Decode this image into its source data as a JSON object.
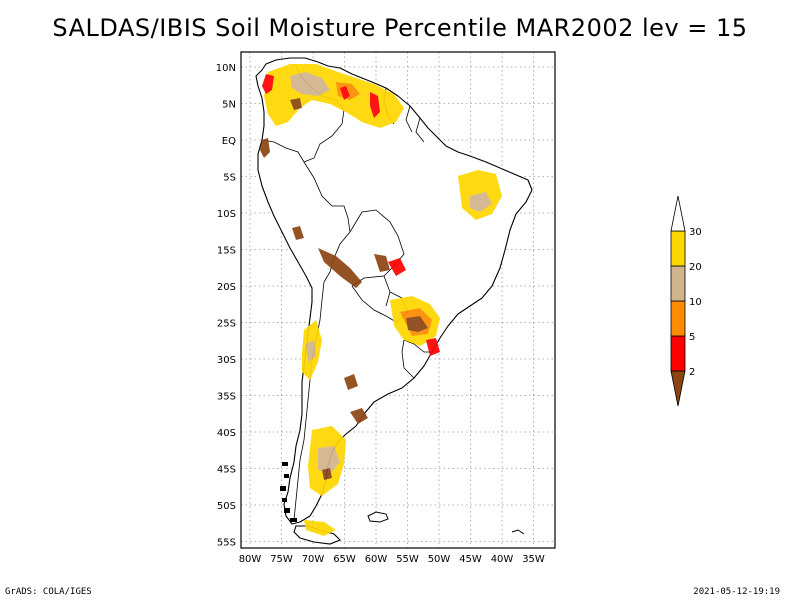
{
  "title": "SALDAS/IBIS Soil Moisture Percentile MAR2002 lev = 15",
  "map": {
    "region": "South America",
    "projection": "latitude-longitude",
    "lon_range": [
      -81,
      -31
    ],
    "lat_range": [
      -56,
      11
    ],
    "grid_lines": "dotted"
  },
  "axes": {
    "y_ticks": [
      {
        "label": "10N",
        "lat": 10
      },
      {
        "label": "5N",
        "lat": 5
      },
      {
        "label": "EQ",
        "lat": 0
      },
      {
        "label": "5S",
        "lat": -5
      },
      {
        "label": "10S",
        "lat": -10
      },
      {
        "label": "15S",
        "lat": -15
      },
      {
        "label": "20S",
        "lat": -20
      },
      {
        "label": "25S",
        "lat": -25
      },
      {
        "label": "30S",
        "lat": -30
      },
      {
        "label": "35S",
        "lat": -35
      },
      {
        "label": "40S",
        "lat": -40
      },
      {
        "label": "45S",
        "lat": -45
      },
      {
        "label": "50S",
        "lat": -50
      },
      {
        "label": "55S",
        "lat": -55
      }
    ],
    "x_ticks": [
      {
        "label": "80W",
        "lon": -80
      },
      {
        "label": "75W",
        "lon": -75
      },
      {
        "label": "70W",
        "lon": -70
      },
      {
        "label": "65W",
        "lon": -65
      },
      {
        "label": "60W",
        "lon": -60
      },
      {
        "label": "55W",
        "lon": -55
      },
      {
        "label": "50W",
        "lon": -50
      },
      {
        "label": "45W",
        "lon": -45
      },
      {
        "label": "40W",
        "lon": -40
      },
      {
        "label": "35W",
        "lon": -35
      }
    ]
  },
  "legend": {
    "bins": [
      {
        "label": "",
        "color": "#8b4513"
      },
      {
        "label": "2",
        "color": "#ff0000"
      },
      {
        "label": "5",
        "color": "#ff8c00"
      },
      {
        "label": "10",
        "color": "#d2b48c"
      },
      {
        "label": "20",
        "color": "#ffd700"
      },
      {
        "label": "30",
        "color": "#ffffff"
      }
    ]
  },
  "colors": {
    "brown": "#8b4513",
    "red": "#ff0000",
    "orange": "#ff8c00",
    "tan": "#d2b48c",
    "gold": "#ffd700"
  },
  "footer": {
    "left": "GrADS: COLA/IGES",
    "right": "2021-05-12-19:19"
  }
}
